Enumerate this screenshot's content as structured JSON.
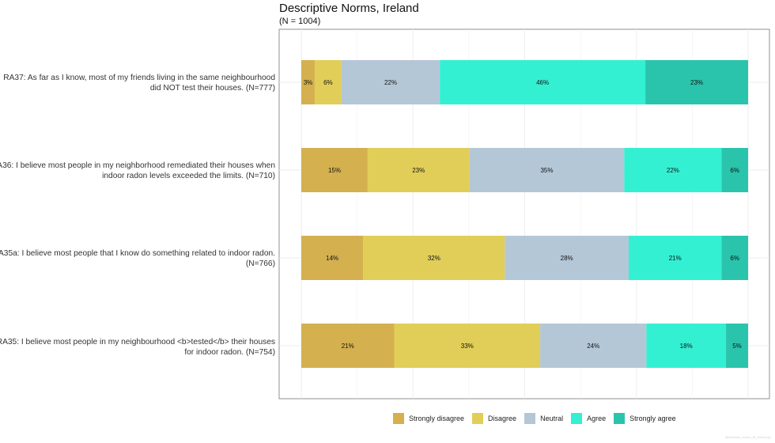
{
  "chart_data": {
    "type": "bar",
    "orientation": "horizontal",
    "stacked": true,
    "title": "Descriptive Norms, Ireland",
    "subtitle": "(N = 1004)",
    "xlim": [
      0,
      100
    ],
    "grid": true,
    "legend_position": "bottom",
    "categories": [
      "RA37: As far as I know, most of my friends living in the same neighbourhood did NOT test their houses. (N=777)",
      "RA36: I believe most people in my neighborhood remediated their houses when indoor radon levels exceeded the limits. (N=710)",
      "RA35a: I believe most people that I know do something related to indoor radon. (N=766)",
      "RA35: I believe most people in my neighbourhood <b>tested</b> their houses for indoor radon. (N=754)"
    ],
    "series": [
      {
        "name": "Strongly disagree",
        "color": "#d4b04e",
        "values": [
          3,
          15,
          14,
          21
        ],
        "labels": [
          "3%",
          "15%",
          "14%",
          "21%"
        ]
      },
      {
        "name": "Disagree",
        "color": "#e1ce58",
        "values": [
          6,
          23,
          32,
          33
        ],
        "labels": [
          "6%",
          "23%",
          "32%",
          "33%"
        ]
      },
      {
        "name": "Neutral",
        "color": "#b4c7d6",
        "values": [
          22,
          35,
          28,
          24
        ],
        "labels": [
          "22%",
          "35%",
          "28%",
          "24%"
        ]
      },
      {
        "name": "Agree",
        "color": "#34f0d2",
        "values": [
          46,
          22,
          21,
          18
        ],
        "labels": [
          "46%",
          "22%",
          "21%",
          "18%"
        ]
      },
      {
        "name": "Strongly agree",
        "color": "#2ac4ac",
        "values": [
          23,
          6,
          6,
          5
        ],
        "labels": [
          "23%",
          "6%",
          "6%",
          "5%"
        ]
      }
    ]
  },
  "footer_note": "descriptive_norms_IE_d9c4.png"
}
